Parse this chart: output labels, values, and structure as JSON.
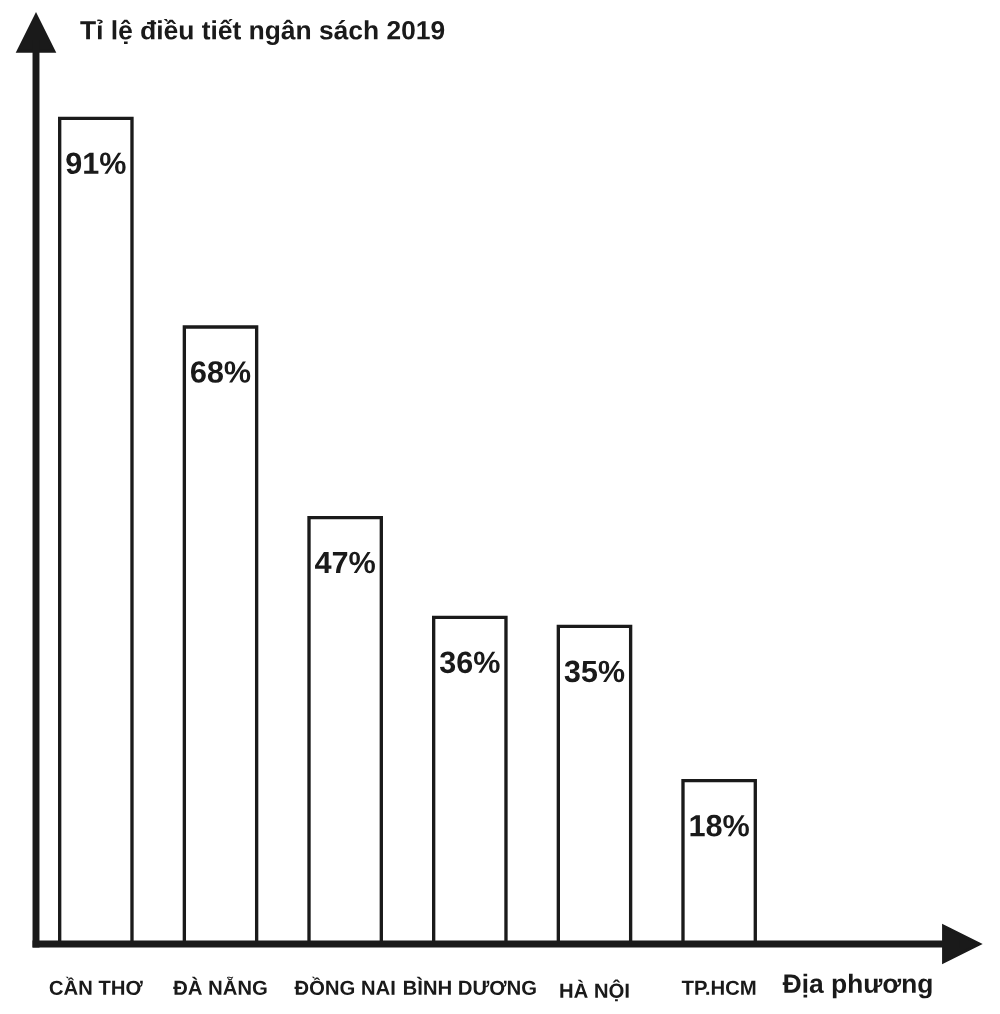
{
  "chart_data": {
    "type": "bar",
    "ylabel": "Tỉ lệ điều tiết ngân sách 2019",
    "xlabel": "Địa phương",
    "categories": [
      "CẦN THƠ",
      "ĐÀ NẴNG",
      "ĐỒNG NAI",
      "BÌNH DƯƠNG",
      "HÀ NỘI",
      "TP.HCM"
    ],
    "values": [
      91,
      68,
      47,
      36,
      35,
      18
    ],
    "color": "#ffffff",
    "value_labels": [
      "91%",
      "68%",
      "47%",
      "36%",
      "35%",
      "18%"
    ],
    "tick_labels": "x"
  }
}
